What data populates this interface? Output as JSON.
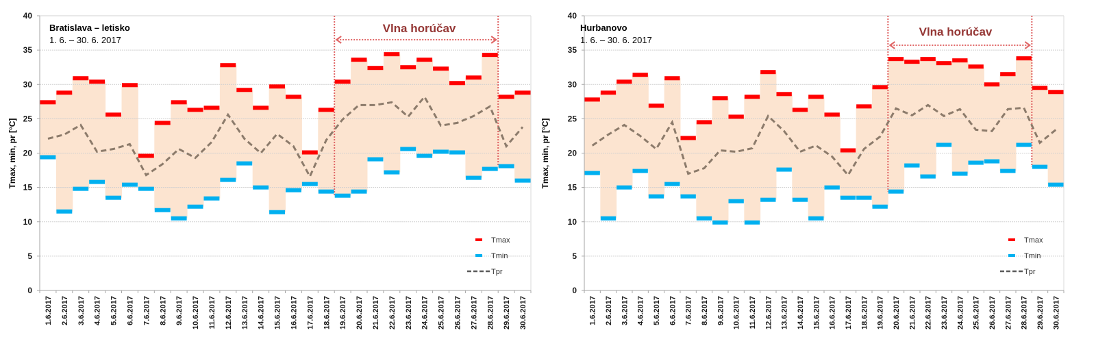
{
  "chart_data": [
    {
      "type": "line",
      "station": "Bratislava – letisko",
      "period": "1. 6. – 30. 6. 2017",
      "ylabel": "Tmax, min, pr [°C]",
      "xlabel": "",
      "ylim": [
        0,
        40
      ],
      "yticks": [
        0,
        5,
        10,
        15,
        20,
        25,
        30,
        35,
        40
      ],
      "grid": true,
      "legend_position": "bottom-right",
      "legend": [
        "Tmax",
        "Tmin",
        "Tpr"
      ],
      "annotation": {
        "label": "Vlna horúčav",
        "start_day": 19,
        "end_day": 28
      },
      "colors": {
        "Tmax": "#ff0000",
        "Tmin": "#00b0f0",
        "Tpr": "#8c7b6b",
        "band": "#fce4d0",
        "heatwave": "#e06666"
      },
      "categories": [
        "1.6.2017",
        "2.6.2017",
        "3.6.2017",
        "4.6.2017",
        "5.6.2017",
        "6.6.2017",
        "7.6.2017",
        "8.6.2017",
        "9.6.2017",
        "10.6.2017",
        "11.6.2017",
        "12.6.2017",
        "13.6.2017",
        "14.6.2017",
        "15.6.2017",
        "16.6.2017",
        "17.6.2017",
        "18.6.2017",
        "19.6.2017",
        "20.6.2017",
        "21.6.2017",
        "22.6.2017",
        "23.6.2017",
        "24.6.2017",
        "25.6.2017",
        "26.6.2017",
        "27.6.2017",
        "28.6.2017",
        "29.6.2017",
        "30.6.2017"
      ],
      "series": [
        {
          "name": "Tmax",
          "values": [
            27.4,
            28.8,
            30.9,
            30.4,
            25.6,
            29.9,
            19.6,
            24.4,
            27.4,
            26.3,
            26.6,
            32.8,
            29.2,
            26.6,
            29.7,
            28.2,
            20.1,
            26.3,
            30.4,
            33.6,
            32.4,
            34.4,
            32.5,
            33.6,
            32.3,
            30.2,
            31.0,
            34.3,
            28.2,
            28.8
          ]
        },
        {
          "name": "Tmin",
          "values": [
            19.4,
            11.5,
            14.8,
            15.8,
            13.5,
            15.4,
            14.8,
            11.7,
            10.5,
            12.2,
            13.4,
            16.1,
            18.5,
            15.0,
            11.4,
            14.6,
            15.5,
            14.4,
            13.8,
            14.4,
            19.1,
            17.2,
            20.6,
            19.6,
            20.2,
            20.1,
            16.4,
            17.7,
            18.1,
            16.0
          ]
        },
        {
          "name": "Tpr",
          "values": [
            22.1,
            22.7,
            24.1,
            20.2,
            20.6,
            21.3,
            16.8,
            18.4,
            20.6,
            19.3,
            21.6,
            25.6,
            22.1,
            20.0,
            22.8,
            21.0,
            16.6,
            21.9,
            24.9,
            27.0,
            27.0,
            27.4,
            25.3,
            28.2,
            24.0,
            24.4,
            25.4,
            26.8,
            21.0,
            23.8
          ]
        }
      ]
    },
    {
      "type": "line",
      "station": "Hurbanovo",
      "period": "1. 6. – 30. 6. 2017",
      "ylabel": "Tmax, min, pr [°C]",
      "xlabel": "",
      "ylim": [
        0,
        40
      ],
      "yticks": [
        0,
        5,
        10,
        15,
        20,
        25,
        30,
        35,
        40
      ],
      "grid": true,
      "legend_position": "bottom-right",
      "legend": [
        "Tmax",
        "Tmin",
        "Tpr"
      ],
      "annotation": {
        "label": "Vlna horúčav",
        "start_day": 20,
        "end_day": 28
      },
      "colors": {
        "Tmax": "#ff0000",
        "Tmin": "#00b0f0",
        "Tpr": "#8c7b6b",
        "band": "#fce4d0",
        "heatwave": "#e06666"
      },
      "categories": [
        "1.6.2017",
        "2.6.2017",
        "3.6.2017",
        "4.6.2017",
        "5.6.2017",
        "6.6.2017",
        "7.6.2017",
        "8.6.2017",
        "9.6.2017",
        "10.6.2017",
        "11.6.2017",
        "12.6.2017",
        "13.6.2017",
        "14.6.2017",
        "15.6.2017",
        "16.6.2017",
        "17.6.2017",
        "18.6.2017",
        "19.6.2017",
        "20.6.2017",
        "21.6.2017",
        "22.6.2017",
        "23.6.2017",
        "24.6.2017",
        "25.6.2017",
        "26.6.2017",
        "27.6.2017",
        "28.6.2017",
        "29.6.2017",
        "30.6.2017"
      ],
      "series": [
        {
          "name": "Tmax",
          "values": [
            27.8,
            28.8,
            30.4,
            31.4,
            26.9,
            30.9,
            22.2,
            24.5,
            28.0,
            25.3,
            28.2,
            31.8,
            28.6,
            26.3,
            28.2,
            25.6,
            20.4,
            26.8,
            29.6,
            33.7,
            33.3,
            33.7,
            33.1,
            33.5,
            32.6,
            30.0,
            31.5,
            33.8,
            29.5,
            28.9
          ]
        },
        {
          "name": "Tmin",
          "values": [
            17.1,
            10.5,
            15.0,
            17.4,
            13.7,
            15.5,
            13.7,
            10.5,
            9.9,
            13.0,
            9.9,
            13.2,
            17.6,
            13.2,
            10.5,
            15.0,
            13.5,
            13.5,
            12.2,
            14.4,
            18.2,
            16.6,
            21.2,
            17.0,
            18.6,
            18.8,
            17.4,
            21.2,
            18.0,
            15.4
          ]
        },
        {
          "name": "Tpr",
          "values": [
            21.1,
            22.7,
            24.1,
            22.5,
            20.6,
            24.5,
            17.0,
            17.8,
            20.4,
            20.2,
            20.7,
            25.4,
            23.2,
            20.2,
            21.1,
            19.5,
            16.8,
            20.6,
            22.4,
            26.5,
            25.5,
            27.0,
            25.4,
            26.4,
            23.4,
            23.2,
            26.4,
            26.6,
            21.5,
            23.4
          ]
        }
      ]
    }
  ]
}
